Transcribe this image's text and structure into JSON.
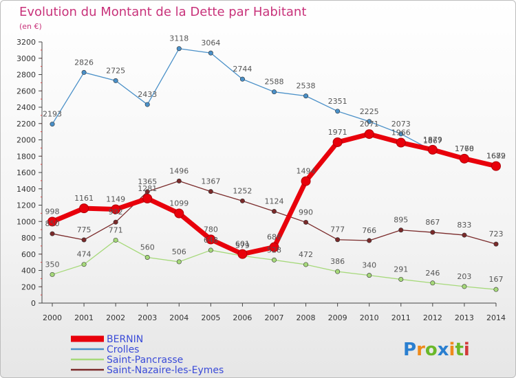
{
  "title": "Evolution du Montant de la Dette par Habitant",
  "subtitle": "(en €)",
  "brand": {
    "letters": [
      "P",
      "r",
      "o",
      "x",
      "i",
      "t",
      "i"
    ],
    "colors": [
      "#2a7fd0",
      "#ee8a1a",
      "#6ab82a",
      "#2a7fd0",
      "#ee8a1a",
      "#6ab82a",
      "#d23a3a"
    ]
  },
  "chart_data": {
    "type": "line",
    "x": [
      "2000",
      "2001",
      "2002",
      "2003",
      "2004",
      "2005",
      "2006",
      "2007",
      "2008",
      "2009",
      "2010",
      "2011",
      "2012",
      "2013",
      "2014"
    ],
    "ylim": [
      0,
      3200
    ],
    "yticks": [
      0,
      200,
      400,
      600,
      800,
      1000,
      1200,
      1400,
      1600,
      1800,
      2000,
      2200,
      2400,
      2600,
      2800,
      3000,
      3200
    ],
    "legend_position": "bottom-left",
    "grid": false,
    "series": [
      {
        "name": "BERNIN",
        "color": "#e8000b",
        "values": [
          998,
          1161,
          1149,
          1281,
          1099,
          780,
          601,
          686,
          1494,
          1971,
          2071,
          1966,
          1879,
          1770,
          1679
        ]
      },
      {
        "name": "Crolles",
        "color": "#4a90c8",
        "values": [
          2193,
          2826,
          2725,
          2433,
          3118,
          3064,
          2744,
          2588,
          2538,
          2351,
          2225,
          2073,
          1867,
          1768,
          1682
        ]
      },
      {
        "name": "Saint-Pancrasse",
        "color": "#a6d97a",
        "values": [
          350,
          474,
          771,
          560,
          506,
          648,
          579,
          528,
          472,
          386,
          340,
          291,
          246,
          203,
          167
        ]
      },
      {
        "name": "Saint-Nazaire-les-Eymes",
        "color": "#7a2a2a",
        "values": [
          850,
          775,
          992,
          1365,
          1496,
          1367,
          1252,
          1124,
          990,
          777,
          766,
          895,
          867,
          833,
          723
        ]
      }
    ]
  }
}
